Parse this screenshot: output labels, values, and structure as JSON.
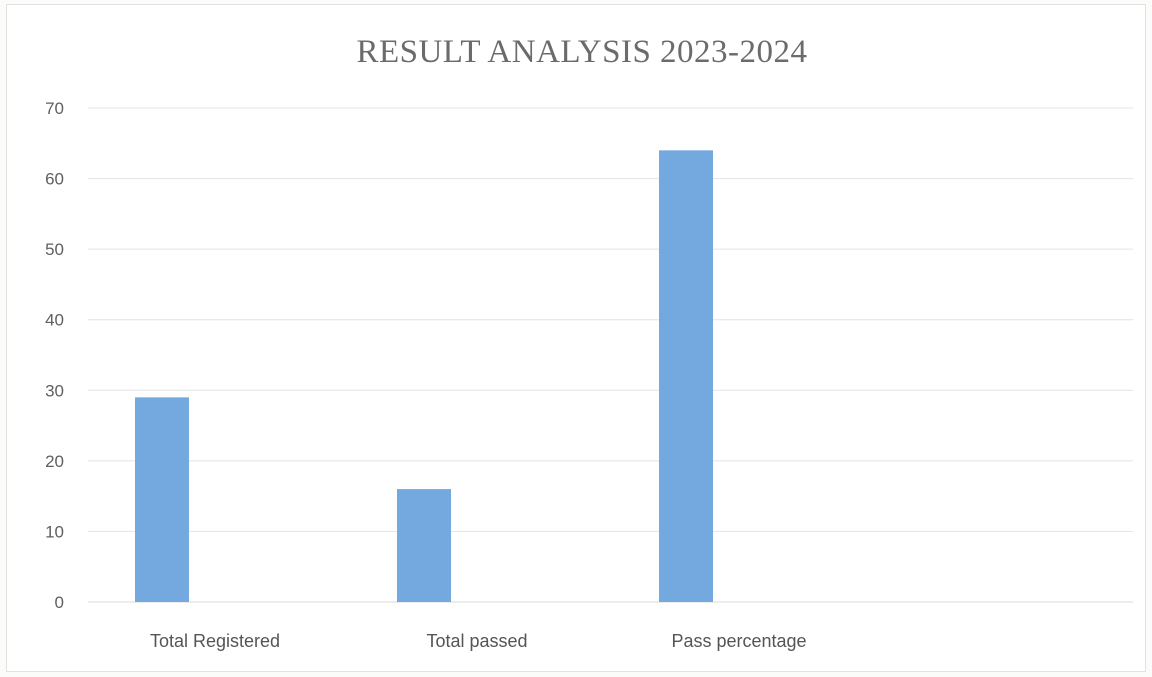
{
  "chart_data": {
    "type": "bar",
    "title": "RESULT ANALYSIS 2023-2024",
    "xlabel": "",
    "ylabel": "",
    "categories": [
      "Total Registered",
      "Total passed",
      "Pass percentage"
    ],
    "values": [
      29,
      16,
      64
    ],
    "ylim": [
      0,
      70
    ],
    "yticks": [
      0,
      10,
      20,
      30,
      40,
      50,
      60,
      70
    ],
    "grid": true,
    "legend": "none",
    "bar_color": "#74a9df"
  }
}
